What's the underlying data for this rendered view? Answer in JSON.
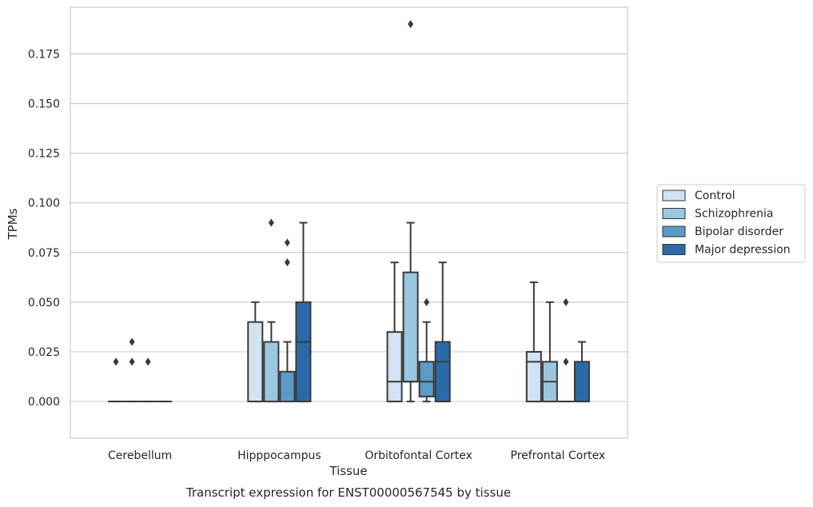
{
  "chart_data": {
    "type": "box",
    "title": "",
    "xlabel": "Tissue",
    "ylabel": "TPMs",
    "caption": "Transcript expression for ENST00000567545 by tissue",
    "ylim": [
      -0.0185,
      0.1985
    ],
    "yticks": [
      0.0,
      0.025,
      0.05,
      0.075,
      0.1,
      0.125,
      0.15,
      0.175
    ],
    "ytick_labels": [
      "0.000",
      "0.025",
      "0.050",
      "0.075",
      "0.100",
      "0.125",
      "0.150",
      "0.175"
    ],
    "grid": "horizontal",
    "legend_position": "right",
    "categories": [
      "Cerebellum",
      "Hipppocampus",
      "Orbitofontal Cortex",
      "Prefrontal Cortex"
    ],
    "series": [
      {
        "name": "Control",
        "color": "#d1e2f2",
        "boxes": [
          {
            "whislo": 0,
            "q1": 0,
            "med": 0,
            "q3": 0,
            "whishi": 0,
            "fliers": [
              0.02
            ]
          },
          {
            "whislo": 0,
            "q1": 0,
            "med": 0,
            "q3": 0.04,
            "whishi": 0.05,
            "fliers": []
          },
          {
            "whislo": 0,
            "q1": 0,
            "med": 0.01,
            "q3": 0.035,
            "whishi": 0.07,
            "fliers": []
          },
          {
            "whislo": 0,
            "q1": 0,
            "med": 0.02,
            "q3": 0.025,
            "whishi": 0.06,
            "fliers": []
          }
        ]
      },
      {
        "name": "Schizophrenia",
        "color": "#9ac7e0",
        "boxes": [
          {
            "whislo": 0,
            "q1": 0,
            "med": 0,
            "q3": 0,
            "whishi": 0,
            "fliers": [
              0.03,
              0.02
            ]
          },
          {
            "whislo": 0,
            "q1": 0,
            "med": 0,
            "q3": 0.03,
            "whishi": 0.04,
            "fliers": [
              0.09
            ]
          },
          {
            "whislo": 0,
            "q1": 0.01,
            "med": 0.01,
            "q3": 0.065,
            "whishi": 0.09,
            "fliers": [
              0.19
            ]
          },
          {
            "whislo": 0,
            "q1": 0,
            "med": 0.01,
            "q3": 0.02,
            "whishi": 0.05,
            "fliers": []
          }
        ]
      },
      {
        "name": "Bipolar disorder",
        "color": "#5b9bc8",
        "boxes": [
          {
            "whislo": 0,
            "q1": 0,
            "med": 0,
            "q3": 0,
            "whishi": 0,
            "fliers": [
              0.02
            ]
          },
          {
            "whislo": 0,
            "q1": 0,
            "med": 0,
            "q3": 0.015,
            "whishi": 0.03,
            "fliers": [
              0.08,
              0.07
            ]
          },
          {
            "whislo": 0,
            "q1": 0.0025,
            "med": 0.01,
            "q3": 0.02,
            "whishi": 0.04,
            "fliers": [
              0.05
            ]
          },
          {
            "whislo": 0,
            "q1": 0,
            "med": 0,
            "q3": 0,
            "whishi": 0,
            "fliers": [
              0.05,
              0.02
            ]
          }
        ]
      },
      {
        "name": "Major depression",
        "color": "#2b6aa8",
        "boxes": [
          {
            "whislo": 0,
            "q1": 0,
            "med": 0,
            "q3": 0,
            "whishi": 0,
            "fliers": []
          },
          {
            "whislo": 0,
            "q1": 0,
            "med": 0.03,
            "q3": 0.05,
            "whishi": 0.09,
            "fliers": []
          },
          {
            "whislo": 0,
            "q1": 0,
            "med": 0.02,
            "q3": 0.03,
            "whishi": 0.07,
            "fliers": []
          },
          {
            "whislo": 0,
            "q1": 0,
            "med": 0,
            "q3": 0.02,
            "whishi": 0.03,
            "fliers": []
          }
        ]
      }
    ]
  }
}
